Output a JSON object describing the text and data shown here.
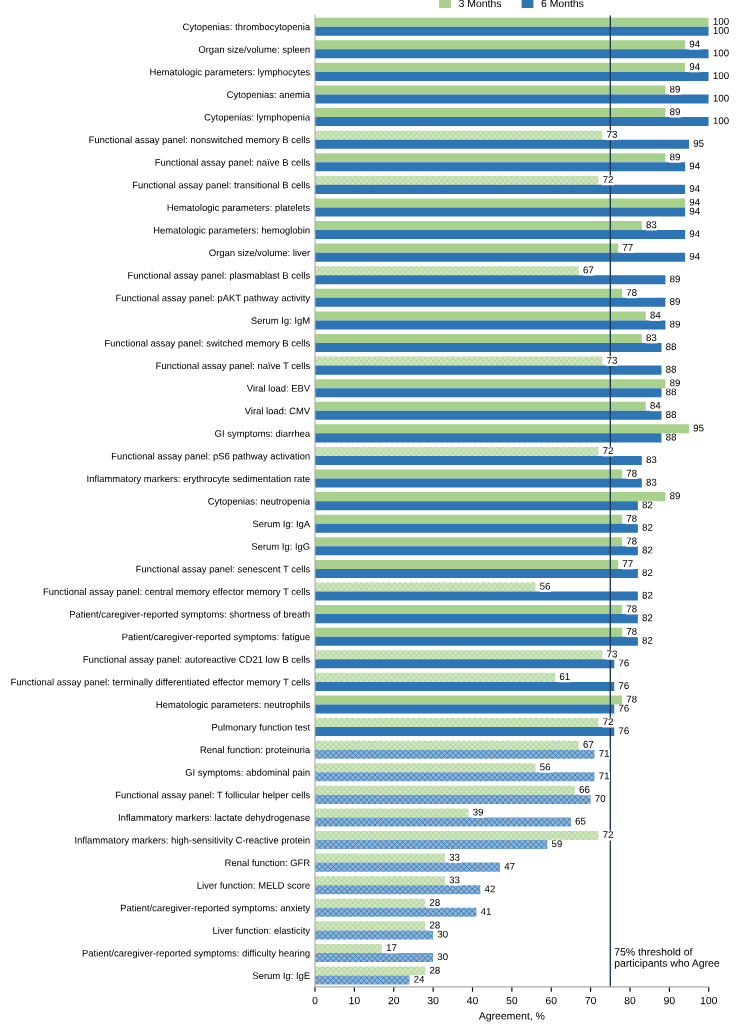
{
  "chart_data": {
    "type": "bar",
    "orientation": "horizontal",
    "xlabel": "Agreement, %",
    "xlim": [
      0,
      100
    ],
    "xticks": [
      0,
      10,
      20,
      30,
      40,
      50,
      60,
      70,
      80,
      90,
      100
    ],
    "grid": false,
    "legend": "top",
    "data_labels": true,
    "categories": [
      "Cytopenias: thrombocytopenia",
      "Organ size/volume: spleen",
      "Hematologic parameters: lymphocytes",
      "Cytopenias: anemia",
      "Cytopenias: lymphopenia",
      "Functional assay panel: nonswitched memory B cells",
      "Functional assay panel: naïve B cells",
      "Functional assay panel: transitional B cells",
      "Hematologic parameters: platelets",
      "Hematologic parameters: hemoglobin",
      "Organ size/volume: liver",
      "Functional assay panel: plasmablast B cells",
      "Functional assay panel: pAKT pathway activity",
      "Serum Ig: IgM",
      "Functional assay panel: switched memory B cells",
      "Functional assay panel: naïve T cells",
      "Viral load: EBV",
      "Viral load: CMV",
      "GI symptoms: diarrhea",
      "Functional assay panel: pS6 pathway activation",
      "Inflammatory markers: erythrocyte sedimentation rate",
      "Cytopenias: neutropenia",
      "Serum Ig: IgA",
      "Serum Ig: IgG",
      "Functional assay panel: senescent T cells",
      "Functional assay panel: central memory effector memory T cells",
      "Patient/caregiver-reported symptoms: shortness of breath",
      "Patient/caregiver-reported symptoms: fatigue",
      "Functional assay panel: autoreactive CD21 low B cells",
      "Functional assay panel: terminally differentiated effector memory T cells",
      "Hematologic parameters: neutrophils",
      "Pulmonary function test",
      "Renal function: proteinuria",
      "GI symptoms: abdominal pain",
      "Functional assay panel: T follicular helper cells",
      "Inflammatory markers: lactate dehydrogenase",
      "Inflammatory markers: high-sensitivity C-reactive protein",
      "Renal function: GFR",
      "Liver function: MELD score",
      "Patient/caregiver-reported symptoms: anxiety",
      "Liver function: elasticity",
      "Patient/caregiver-reported symptoms: difficulty hearing",
      "Serum Ig: IgE"
    ],
    "series": [
      {
        "name": "3 Months",
        "color": "#a9d18e",
        "values": [
          100,
          94,
          94,
          89,
          89,
          73,
          89,
          72,
          94,
          83,
          77,
          67,
          78,
          84,
          83,
          73,
          89,
          84,
          95,
          72,
          78,
          89,
          78,
          78,
          77,
          56,
          78,
          78,
          73,
          61,
          78,
          72,
          67,
          56,
          66,
          39,
          72,
          33,
          33,
          28,
          28,
          17,
          28
        ]
      },
      {
        "name": "6 Months",
        "color": "#2e75b6",
        "values": [
          100,
          100,
          100,
          100,
          100,
          95,
          94,
          94,
          94,
          94,
          94,
          89,
          89,
          89,
          88,
          88,
          88,
          88,
          88,
          83,
          83,
          82,
          82,
          82,
          82,
          82,
          82,
          82,
          76,
          76,
          76,
          76,
          71,
          71,
          70,
          65,
          59,
          47,
          42,
          41,
          30,
          30,
          24
        ]
      }
    ],
    "ref_lines": [
      {
        "axis": "x",
        "value": 75,
        "label": "75% threshold of\nparticipants who Agree",
        "color": "#1f3b57",
        "line_style": "solid"
      }
    ]
  }
}
